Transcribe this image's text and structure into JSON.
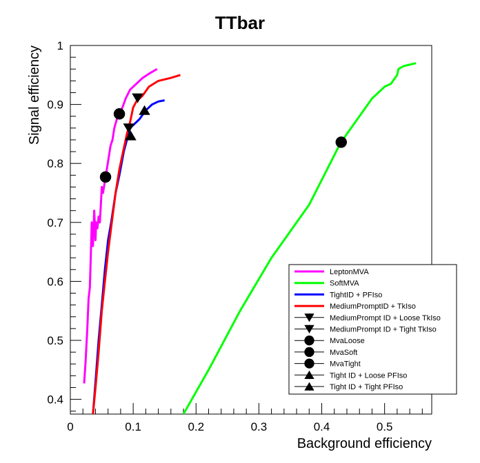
{
  "chart_data": {
    "type": "line",
    "title": "TTbar",
    "xlabel": "Background efficiency",
    "ylabel": "Signal efficiency",
    "xlim": [
      0,
      0.575
    ],
    "ylim": [
      0.375,
      1.0
    ],
    "x_ticks": [
      "0",
      "0.1",
      "0.2",
      "0.3",
      "0.4",
      "0.5"
    ],
    "y_ticks": [
      "0.4",
      "0.5",
      "0.6",
      "0.7",
      "0.8",
      "0.9",
      "1"
    ],
    "legend_position": "bottom-right",
    "series": [
      {
        "name": "LeptonMVA",
        "color": "#ff00ff",
        "points": [
          [
            0.022,
            0.427
          ],
          [
            0.024,
            0.46
          ],
          [
            0.027,
            0.52
          ],
          [
            0.029,
            0.57
          ],
          [
            0.031,
            0.59
          ],
          [
            0.033,
            0.66
          ],
          [
            0.034,
            0.7
          ],
          [
            0.036,
            0.66
          ],
          [
            0.038,
            0.72
          ],
          [
            0.04,
            0.67
          ],
          [
            0.041,
            0.7
          ],
          [
            0.043,
            0.69
          ],
          [
            0.045,
            0.71
          ],
          [
            0.047,
            0.7
          ],
          [
            0.049,
            0.74
          ],
          [
            0.05,
            0.76
          ],
          [
            0.052,
            0.75
          ],
          [
            0.055,
            0.77
          ],
          [
            0.058,
            0.79
          ],
          [
            0.061,
            0.81
          ],
          [
            0.064,
            0.83
          ],
          [
            0.067,
            0.84
          ],
          [
            0.07,
            0.86
          ],
          [
            0.074,
            0.875
          ],
          [
            0.078,
            0.885
          ],
          [
            0.083,
            0.895
          ],
          [
            0.088,
            0.91
          ],
          [
            0.095,
            0.925
          ],
          [
            0.105,
            0.935
          ],
          [
            0.115,
            0.945
          ],
          [
            0.125,
            0.952
          ],
          [
            0.138,
            0.96
          ]
        ]
      },
      {
        "name": "SoftMVA",
        "color": "#00ff00",
        "points": [
          [
            0.18,
            0.375
          ],
          [
            0.22,
            0.45
          ],
          [
            0.27,
            0.55
          ],
          [
            0.32,
            0.64
          ],
          [
            0.38,
            0.73
          ],
          [
            0.43,
            0.835
          ],
          [
            0.46,
            0.88
          ],
          [
            0.48,
            0.91
          ],
          [
            0.5,
            0.93
          ],
          [
            0.51,
            0.935
          ],
          [
            0.52,
            0.95
          ],
          [
            0.522,
            0.96
          ],
          [
            0.53,
            0.965
          ],
          [
            0.55,
            0.97
          ]
        ]
      },
      {
        "name": "TightID + PFIso",
        "color": "#0000ff",
        "points": [
          [
            0.036,
            0.375
          ],
          [
            0.04,
            0.43
          ],
          [
            0.045,
            0.5
          ],
          [
            0.05,
            0.56
          ],
          [
            0.055,
            0.62
          ],
          [
            0.06,
            0.67
          ],
          [
            0.065,
            0.7
          ],
          [
            0.072,
            0.75
          ],
          [
            0.078,
            0.78
          ],
          [
            0.085,
            0.82
          ],
          [
            0.09,
            0.84
          ],
          [
            0.095,
            0.86
          ],
          [
            0.1,
            0.865
          ],
          [
            0.11,
            0.875
          ],
          [
            0.12,
            0.89
          ],
          [
            0.13,
            0.9
          ],
          [
            0.14,
            0.905
          ],
          [
            0.15,
            0.907
          ]
        ]
      },
      {
        "name": "MediumPromptID + TkIso",
        "color": "#ff0000",
        "points": [
          [
            0.036,
            0.375
          ],
          [
            0.04,
            0.42
          ],
          [
            0.045,
            0.48
          ],
          [
            0.05,
            0.55
          ],
          [
            0.055,
            0.6
          ],
          [
            0.06,
            0.65
          ],
          [
            0.066,
            0.7
          ],
          [
            0.072,
            0.75
          ],
          [
            0.078,
            0.79
          ],
          [
            0.084,
            0.82
          ],
          [
            0.09,
            0.85
          ],
          [
            0.095,
            0.87
          ],
          [
            0.1,
            0.895
          ],
          [
            0.105,
            0.905
          ],
          [
            0.115,
            0.915
          ],
          [
            0.125,
            0.93
          ],
          [
            0.14,
            0.94
          ],
          [
            0.16,
            0.945
          ],
          [
            0.175,
            0.95
          ]
        ]
      }
    ],
    "markers": [
      {
        "name": "MediumPrompt ID + Loose TkIso",
        "shape": "triangle-down",
        "x": 0.093,
        "y": 0.86
      },
      {
        "name": "MediumPrompt ID + Tight TkIso",
        "shape": "triangle-down",
        "x": 0.107,
        "y": 0.911
      },
      {
        "name": "MvaLoose",
        "shape": "circle",
        "x": 0.056,
        "y": 0.777
      },
      {
        "name": "MvaSoft",
        "shape": "circle",
        "x": 0.431,
        "y": 0.836
      },
      {
        "name": "MvaTight",
        "shape": "circle",
        "x": 0.078,
        "y": 0.884
      },
      {
        "name": "Tight ID + Loose PFIso",
        "shape": "triangle-up",
        "x": 0.096,
        "y": 0.847
      },
      {
        "name": "Tight ID + Tight PFIso",
        "shape": "triangle-up",
        "x": 0.118,
        "y": 0.89
      }
    ]
  }
}
